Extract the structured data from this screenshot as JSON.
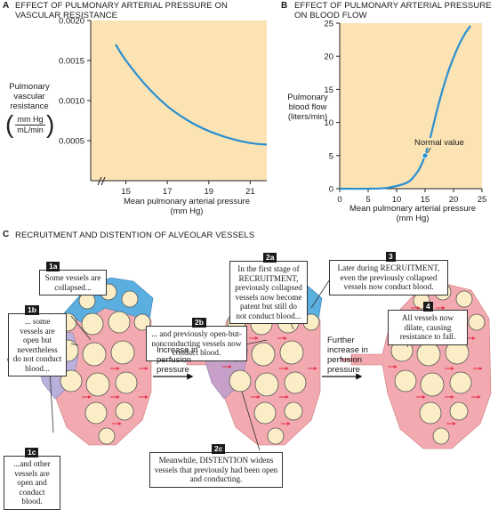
{
  "panel_a": {
    "letter": "A",
    "title_line1": "EFFECT OF PULMONARY ARTERIAL PRESSURE ON",
    "title_line2": "VASCULAR RESISTANCE",
    "ylabel_line1": "Pulmonary",
    "ylabel_line2": "vascular",
    "ylabel_line3": "resistance",
    "ylabel_unit_num": "mm Hg",
    "ylabel_unit_den": "mL/min",
    "xlabel_line1": "Mean pulmonary arterial pressure",
    "xlabel_line2": "(mm Hg)",
    "y_ticks": [
      "0.0020",
      "0.0015",
      "0.0010",
      "0.0005"
    ],
    "x_ticks": [
      "15",
      "17",
      "19",
      "21"
    ]
  },
  "panel_b": {
    "letter": "B",
    "title_line1": "EFFECT OF PULMONARY ARTERIAL PRESSURE",
    "title_line2": "ON BLOOD FLOW",
    "ylabel_line1": "Pulmonary",
    "ylabel_line2": "blood flow",
    "ylabel_line3": "(liters/min)",
    "xlabel_line1": "Mean pulmonary arterial pressure",
    "xlabel_line2": "(mm Hg)",
    "y_ticks": [
      "25",
      "20",
      "15",
      "10",
      "5",
      "0"
    ],
    "x_ticks": [
      "0",
      "5",
      "10",
      "15",
      "20",
      "25"
    ],
    "annotation": "Normal value"
  },
  "chart_data": [
    {
      "type": "line",
      "x": [
        14.5,
        15,
        16,
        17,
        18,
        19,
        20,
        21,
        21.8
      ],
      "values": [
        0.0017,
        0.0015,
        0.00118,
        0.00093,
        0.00075,
        0.00062,
        0.00053,
        0.00047,
        0.00045
      ],
      "xlim": [
        13.3,
        21.8
      ],
      "ylim": [
        0.0,
        0.002
      ],
      "grid": false
    },
    {
      "type": "line",
      "x": [
        0,
        5,
        8,
        10,
        12,
        13,
        14,
        15,
        16,
        17,
        18,
        19,
        20,
        21,
        22,
        23
      ],
      "values": [
        0,
        0,
        0.1,
        0.4,
        1.0,
        1.8,
        3.0,
        5.0,
        8.0,
        11.5,
        14.7,
        17.5,
        19.8,
        21.8,
        23.4,
        24.6
      ],
      "xlim": [
        0,
        25
      ],
      "ylim": [
        0,
        25
      ],
      "grid": false,
      "annotation_point": {
        "x": 15,
        "y": 5
      }
    }
  ],
  "panel_c": {
    "letter": "C",
    "title": "RECRUITMENT AND DISTENTION OF ALVEOLAR VESSELS",
    "callout_1a": {
      "badge": "1a",
      "text": "Some vessels are collapsed..."
    },
    "callout_1b": {
      "badge": "1b",
      "text": "... some vessels are open but nevertheless do not conduct blood..."
    },
    "callout_1c": {
      "badge": "1c",
      "text": "...and other vessels are open and conduct blood."
    },
    "callout_2a": {
      "badge": "2a",
      "text": "In the first stage of RECRUITMENT, previously collapsed vessels now become patent but still do not conduct blood..."
    },
    "callout_2b": {
      "badge": "2b",
      "text": "... and previously open-but-nonconducting vessels now conduct blood."
    },
    "callout_2c": {
      "badge": "2c",
      "text": "Meanwhile, DISTENTION widens vessels that previously had been open and conducting."
    },
    "callout_3": {
      "badge": "3",
      "text": "Later during RECRUITMENT, even the previously collapsed vessels now conduct blood."
    },
    "callout_4": {
      "badge": "4",
      "text": "All vessels now dilate, causing resistance to fall."
    },
    "arrow1_line1": "Increase in",
    "arrow1_line2": "perfusion",
    "arrow1_line3": "pressure",
    "arrow2_line1": "Further",
    "arrow2_line2": "increase in",
    "arrow2_line3": "perfusion",
    "arrow2_line4": "pressure"
  },
  "colors": {
    "plot_bg": "#fce3b4",
    "curve": "#2a8fd0",
    "conducting": "#f2aab0",
    "collapsed": "#5aaee0",
    "nonconducting": "#b9b0dc",
    "alveolus": "#fbeec7",
    "flow_arrow": "#e8304a"
  }
}
